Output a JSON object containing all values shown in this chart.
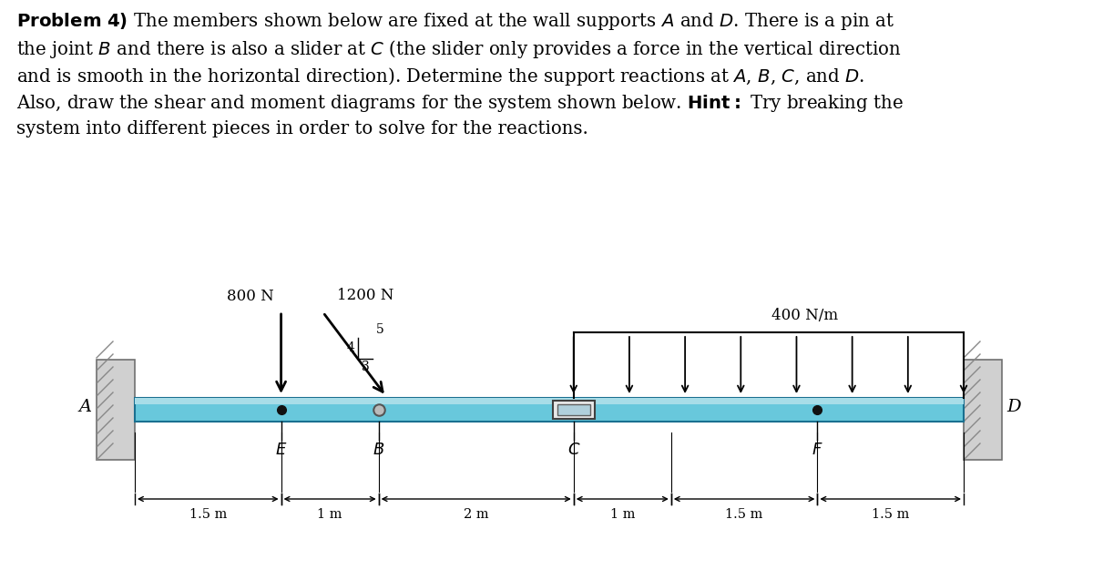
{
  "lines": [
    "\\textbf{Problem 4)} The members shown below are fixed at the wall supports $A$ and $D$. There is a pin at",
    "the joint $B$ and there is also a slider at $C$ (the slider only provides a force in the vertical direction",
    "and is smooth in the horizontal direction). Determine the support reactions at $A$, $B$, $C$, and $D$.",
    "Also, draw the shear and moment diagrams for the system shown below. \\textbf{Hint:} Try breaking the",
    "system into different pieces in order to solve for the reactions."
  ],
  "beam_color": "#7BCFE0",
  "beam_top_color": "#A8DDE8",
  "beam_edge_color": "#2A7A90",
  "wall_color": "#C8C8C8",
  "wall_hatch_color": "#888888",
  "background_color": "#FFFFFF",
  "segments_m": [
    1.5,
    1.0,
    2.0,
    1.0,
    1.5,
    1.5
  ],
  "dim_labels": [
    "1.5 m",
    "1 m",
    "2 m",
    "1 m",
    "1.5 m",
    "1.5 m"
  ],
  "force_800_label": "800 N",
  "force_1200_label": "1200 N",
  "dist_load_label": "400 N/m",
  "label_A": "A",
  "label_D": "D",
  "label_E": "E",
  "label_B": "B",
  "label_C": "C",
  "label_F": "F"
}
